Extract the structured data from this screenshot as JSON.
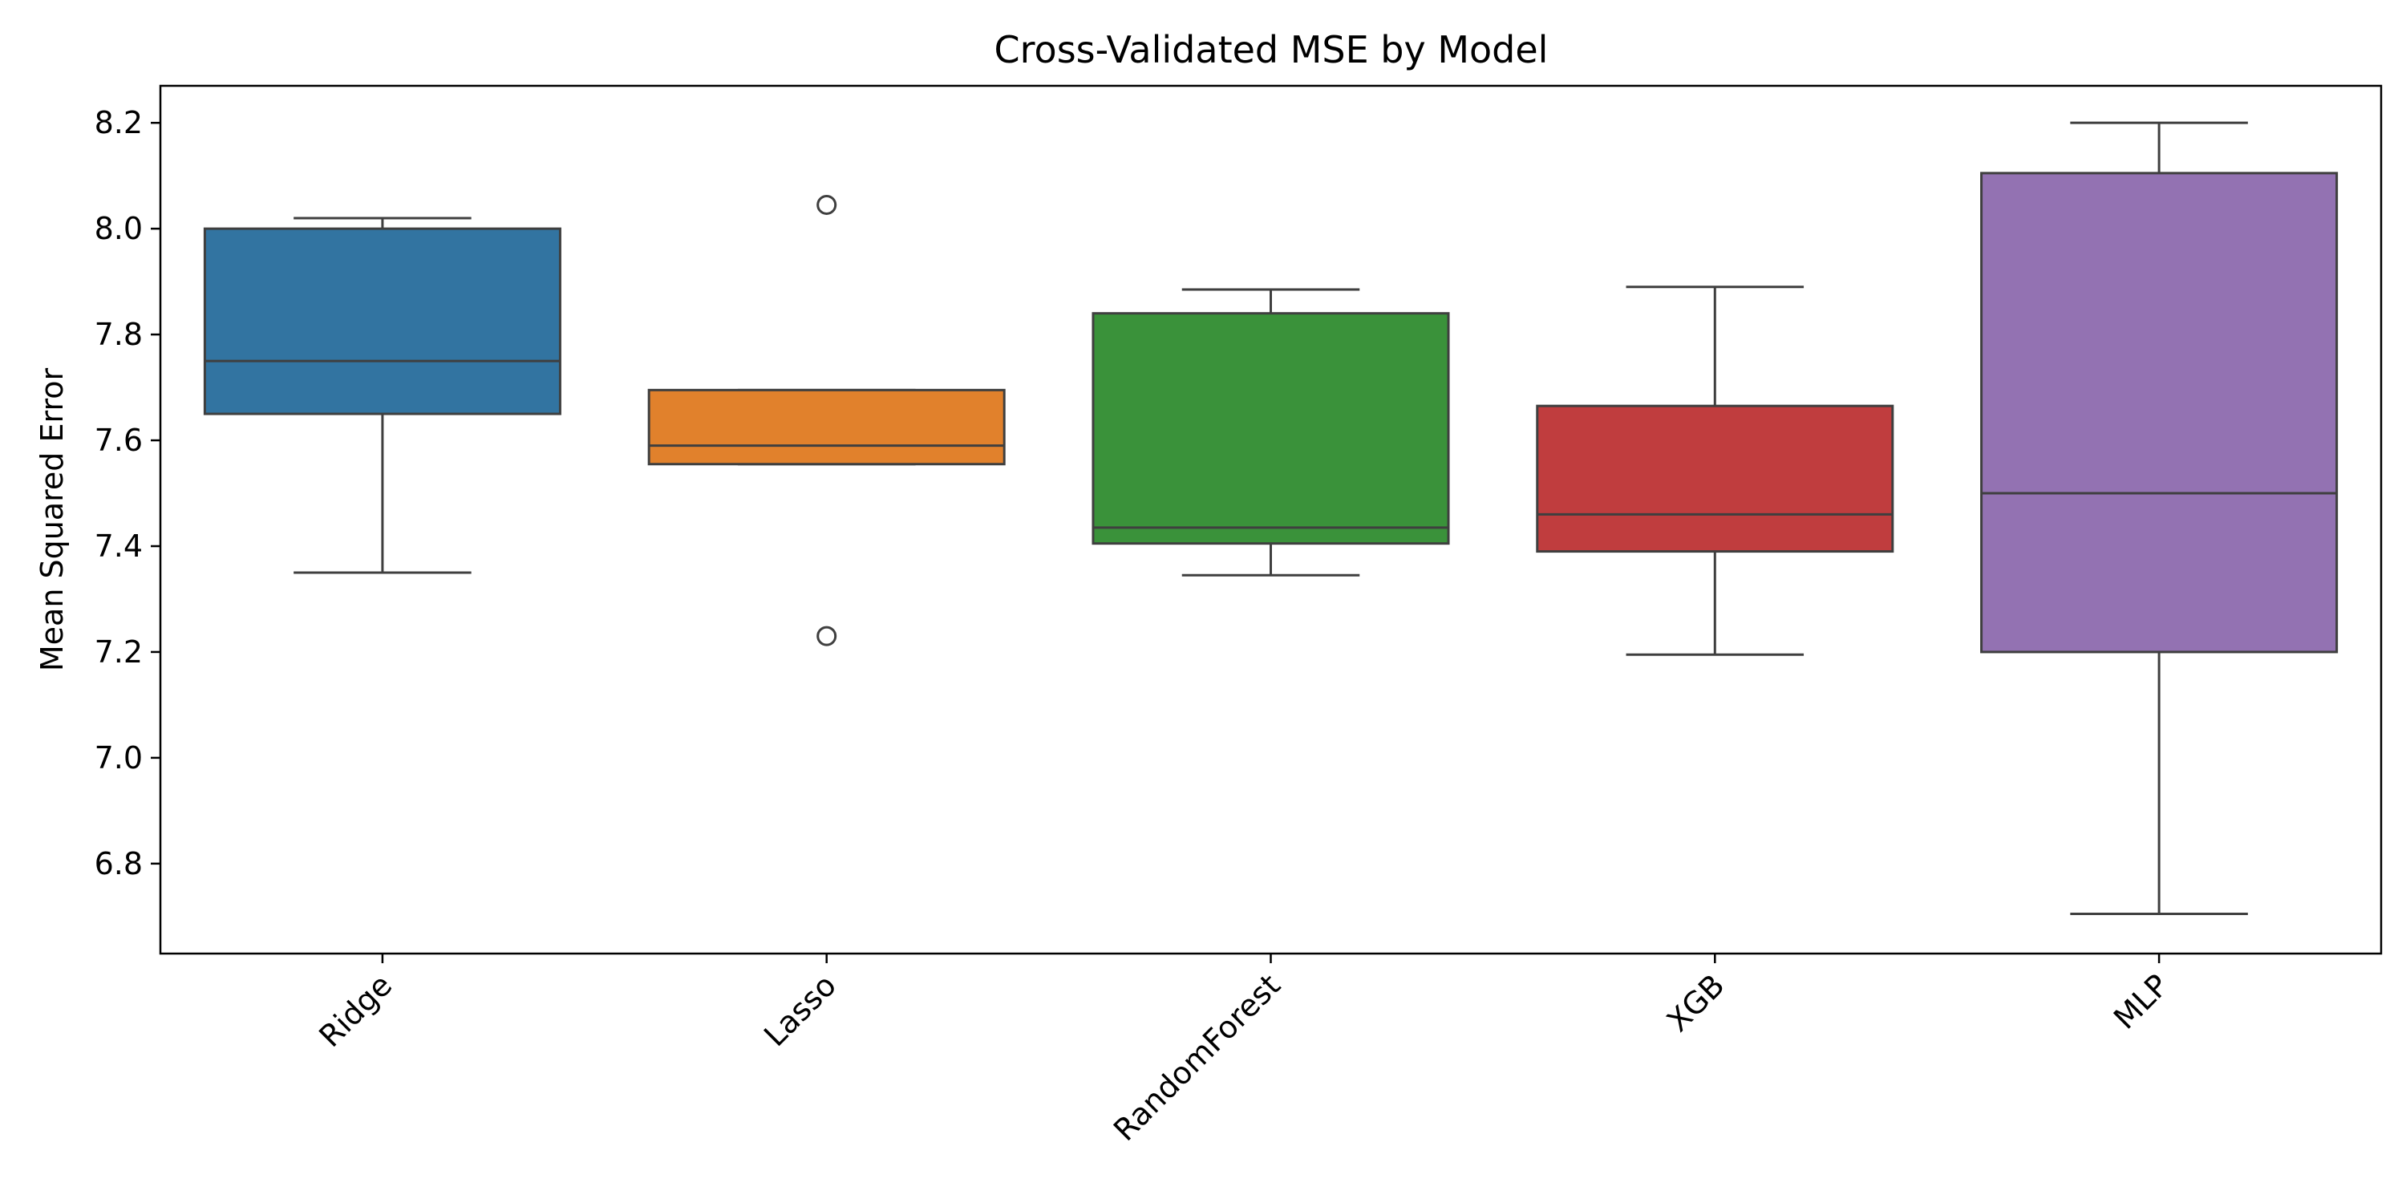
{
  "chart_data": {
    "type": "box",
    "title": "Cross-Validated MSE by Model",
    "xlabel": "",
    "ylabel": "Mean Squared Error",
    "ylim": [
      6.63,
      8.27
    ],
    "yticks": [
      "6.8",
      "7.0",
      "7.2",
      "7.4",
      "7.6",
      "7.8",
      "8.0",
      "8.2"
    ],
    "grid": false,
    "categories": [
      "Ridge",
      "Lasso",
      "RandomForest",
      "XGB",
      "MLP"
    ],
    "boxes": [
      {
        "category": "Ridge",
        "whisker_low": 7.35,
        "q1": 7.65,
        "median": 7.75,
        "q3": 8.0,
        "whisker_high": 8.02,
        "outliers": [],
        "color": "#3274a1"
      },
      {
        "category": "Lasso",
        "whisker_low": 7.555,
        "q1": 7.555,
        "median": 7.59,
        "q3": 7.695,
        "whisker_high": 7.695,
        "outliers": [
          8.045,
          7.23
        ],
        "color": "#e1812c"
      },
      {
        "category": "RandomForest",
        "whisker_low": 7.345,
        "q1": 7.405,
        "median": 7.435,
        "q3": 7.84,
        "whisker_high": 7.885,
        "outliers": [],
        "color": "#3a923a"
      },
      {
        "category": "XGB",
        "whisker_low": 7.195,
        "q1": 7.39,
        "median": 7.46,
        "q3": 7.665,
        "whisker_high": 7.89,
        "outliers": [],
        "color": "#c03d3e"
      },
      {
        "category": "MLP",
        "whisker_low": 6.705,
        "q1": 7.2,
        "median": 7.5,
        "q3": 8.105,
        "whisker_high": 8.2,
        "outliers": [],
        "color": "#9372b2"
      }
    ],
    "line_color": "#3f3f3f"
  }
}
